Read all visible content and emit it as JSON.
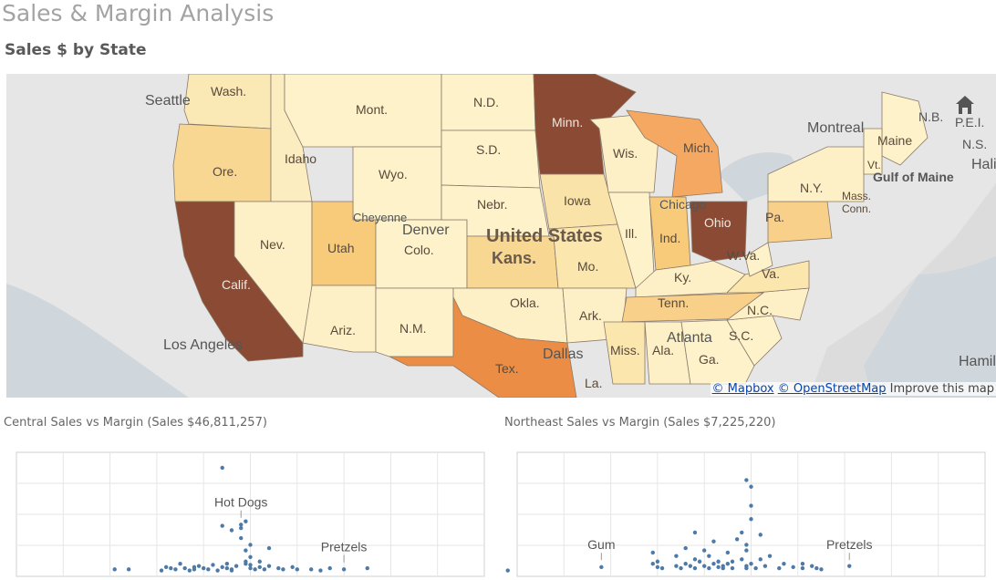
{
  "page": {
    "title": "Sales & Margin Analysis"
  },
  "map_section": {
    "title": "Sales $ by State",
    "attribution": {
      "mapbox": "© Mapbox",
      "osm": "© OpenStreetMap",
      "improve": "Improve this map"
    },
    "colors": {
      "low": "#fdf0c2",
      "mid": "#f9c97a",
      "high": "#ec8d45",
      "top": "#8b4a34"
    },
    "state_labels": [
      "Wash.",
      "Ore.",
      "Calif.",
      "Idaho",
      "Nev.",
      "Mont.",
      "Wyo.",
      "Utah",
      "Ariz.",
      "Colo.",
      "N.M.",
      "N.D.",
      "S.D.",
      "Nebr.",
      "Kans.",
      "Okla.",
      "Tex.",
      "Minn.",
      "Iowa",
      "Mo.",
      "Ark.",
      "Wis.",
      "Ill.",
      "Mich.",
      "Ind.",
      "Ohio",
      "Ky.",
      "Tenn.",
      "Miss.",
      "Ala.",
      "Ga.",
      "S.C.",
      "N.C.",
      "Va.",
      "W.Va.",
      "Pa.",
      "N.Y.",
      "Maine",
      "N.B.",
      "P.E.I.",
      "N.S.",
      "La.",
      "Mass.",
      "Conn.",
      "Vt."
    ],
    "place_labels": [
      "Seattle",
      "Los Angeles",
      "Denver",
      "Cheyenne",
      "United States",
      "Dallas",
      "Chicago",
      "Atlanta",
      "Montreal",
      "Gulf of Maine",
      "Halifax",
      "Hamilton"
    ]
  },
  "charts": {
    "central": {
      "title": "Central Sales vs Margin (Sales $46,811,257)",
      "annotations": [
        "Hot Dogs",
        "Pretzels"
      ]
    },
    "northeast": {
      "title": "Northeast Sales vs Margin (Sales $7,225,220)",
      "annotations": [
        "Gum",
        "Pretzels"
      ]
    }
  },
  "chart_data": [
    {
      "type": "scatter",
      "title": "Central Sales vs Margin (Sales $46,811,257)",
      "xlim": [
        0,
        1
      ],
      "ylim": [
        0,
        1
      ],
      "grid": true,
      "color": "#4e7aa7",
      "points": [
        [
          0.21,
          0.03
        ],
        [
          0.24,
          0.03
        ],
        [
          0.31,
          0.02
        ],
        [
          0.32,
          0.05
        ],
        [
          0.33,
          0.04
        ],
        [
          0.34,
          0.03
        ],
        [
          0.35,
          0.08
        ],
        [
          0.36,
          0.04
        ],
        [
          0.37,
          0.02
        ],
        [
          0.38,
          0.05
        ],
        [
          0.38,
          0.03
        ],
        [
          0.39,
          0.06
        ],
        [
          0.4,
          0.04
        ],
        [
          0.41,
          0.03
        ],
        [
          0.42,
          0.07
        ],
        [
          0.43,
          0.02
        ],
        [
          0.44,
          0.05
        ],
        [
          0.45,
          0.04
        ],
        [
          0.46,
          0.03
        ],
        [
          0.45,
          0.08
        ],
        [
          0.47,
          0.06
        ],
        [
          0.46,
          0.02
        ],
        [
          0.49,
          0.1
        ],
        [
          0.5,
          0.04
        ],
        [
          0.5,
          0.07
        ],
        [
          0.51,
          0.03
        ],
        [
          0.52,
          0.05
        ],
        [
          0.52,
          0.1
        ],
        [
          0.53,
          0.03
        ],
        [
          0.54,
          0.06
        ],
        [
          0.44,
          0.94
        ],
        [
          0.44,
          0.42
        ],
        [
          0.46,
          0.38
        ],
        [
          0.48,
          0.4
        ],
        [
          0.48,
          0.31
        ],
        [
          0.48,
          0.43
        ],
        [
          0.49,
          0.46
        ],
        [
          0.49,
          0.2
        ],
        [
          0.5,
          0.25
        ],
        [
          0.49,
          0.08
        ],
        [
          0.5,
          0.14
        ],
        [
          0.54,
          0.22
        ],
        [
          0.56,
          0.04
        ],
        [
          0.57,
          0.03
        ],
        [
          0.59,
          0.05
        ],
        [
          0.6,
          0.03
        ],
        [
          0.63,
          0.03
        ],
        [
          0.65,
          0.02
        ],
        [
          0.67,
          0.04
        ],
        [
          0.7,
          0.03
        ],
        [
          0.75,
          0.04
        ]
      ],
      "labels": [
        {
          "text": "Hot Dogs",
          "x": 0.48,
          "y": 0.46
        },
        {
          "text": "Pretzels",
          "x": 0.7,
          "y": 0.06
        }
      ]
    },
    {
      "type": "scatter",
      "title": "Northeast Sales vs Margin (Sales $7,225,220)",
      "xlim": [
        0,
        1
      ],
      "ylim": [
        0,
        1
      ],
      "grid": true,
      "color": "#4e7aa7",
      "points": [
        [
          -0.02,
          0.02
        ],
        [
          0.18,
          0.05
        ],
        [
          0.29,
          0.08
        ],
        [
          0.29,
          0.18
        ],
        [
          0.3,
          0.1
        ],
        [
          0.3,
          0.05
        ],
        [
          0.31,
          0.04
        ],
        [
          0.34,
          0.06
        ],
        [
          0.34,
          0.15
        ],
        [
          0.35,
          0.04
        ],
        [
          0.36,
          0.22
        ],
        [
          0.36,
          0.08
        ],
        [
          0.37,
          0.06
        ],
        [
          0.38,
          0.12
        ],
        [
          0.38,
          0.36
        ],
        [
          0.38,
          0.04
        ],
        [
          0.39,
          0.1
        ],
        [
          0.4,
          0.06
        ],
        [
          0.4,
          0.2
        ],
        [
          0.41,
          0.04
        ],
        [
          0.41,
          0.15
        ],
        [
          0.42,
          0.08
        ],
        [
          0.42,
          0.28
        ],
        [
          0.43,
          0.05
        ],
        [
          0.43,
          0.1
        ],
        [
          0.44,
          0.06
        ],
        [
          0.44,
          0.04
        ],
        [
          0.45,
          0.18
        ],
        [
          0.45,
          0.08
        ],
        [
          0.46,
          0.1
        ],
        [
          0.46,
          0.04
        ],
        [
          0.47,
          0.3
        ],
        [
          0.48,
          0.12
        ],
        [
          0.49,
          0.06
        ],
        [
          0.49,
          0.04
        ],
        [
          0.49,
          0.25
        ],
        [
          0.5,
          0.08
        ],
        [
          0.51,
          0.04
        ],
        [
          0.52,
          0.12
        ],
        [
          0.52,
          0.34
        ],
        [
          0.53,
          0.06
        ],
        [
          0.54,
          0.15
        ],
        [
          0.56,
          0.04
        ],
        [
          0.57,
          0.08
        ],
        [
          0.59,
          0.05
        ],
        [
          0.61,
          0.04
        ],
        [
          0.63,
          0.06
        ],
        [
          0.64,
          0.04
        ],
        [
          0.65,
          0.03
        ],
        [
          0.49,
          0.83
        ],
        [
          0.5,
          0.77
        ],
        [
          0.5,
          0.6
        ],
        [
          0.5,
          0.48
        ],
        [
          0.49,
          0.2
        ],
        [
          0.48,
          0.36
        ],
        [
          0.61,
          0.08
        ],
        [
          0.71,
          0.06
        ]
      ],
      "labels": [
        {
          "text": "Gum",
          "x": 0.18,
          "y": 0.08
        },
        {
          "text": "Pretzels",
          "x": 0.71,
          "y": 0.08
        }
      ]
    }
  ]
}
